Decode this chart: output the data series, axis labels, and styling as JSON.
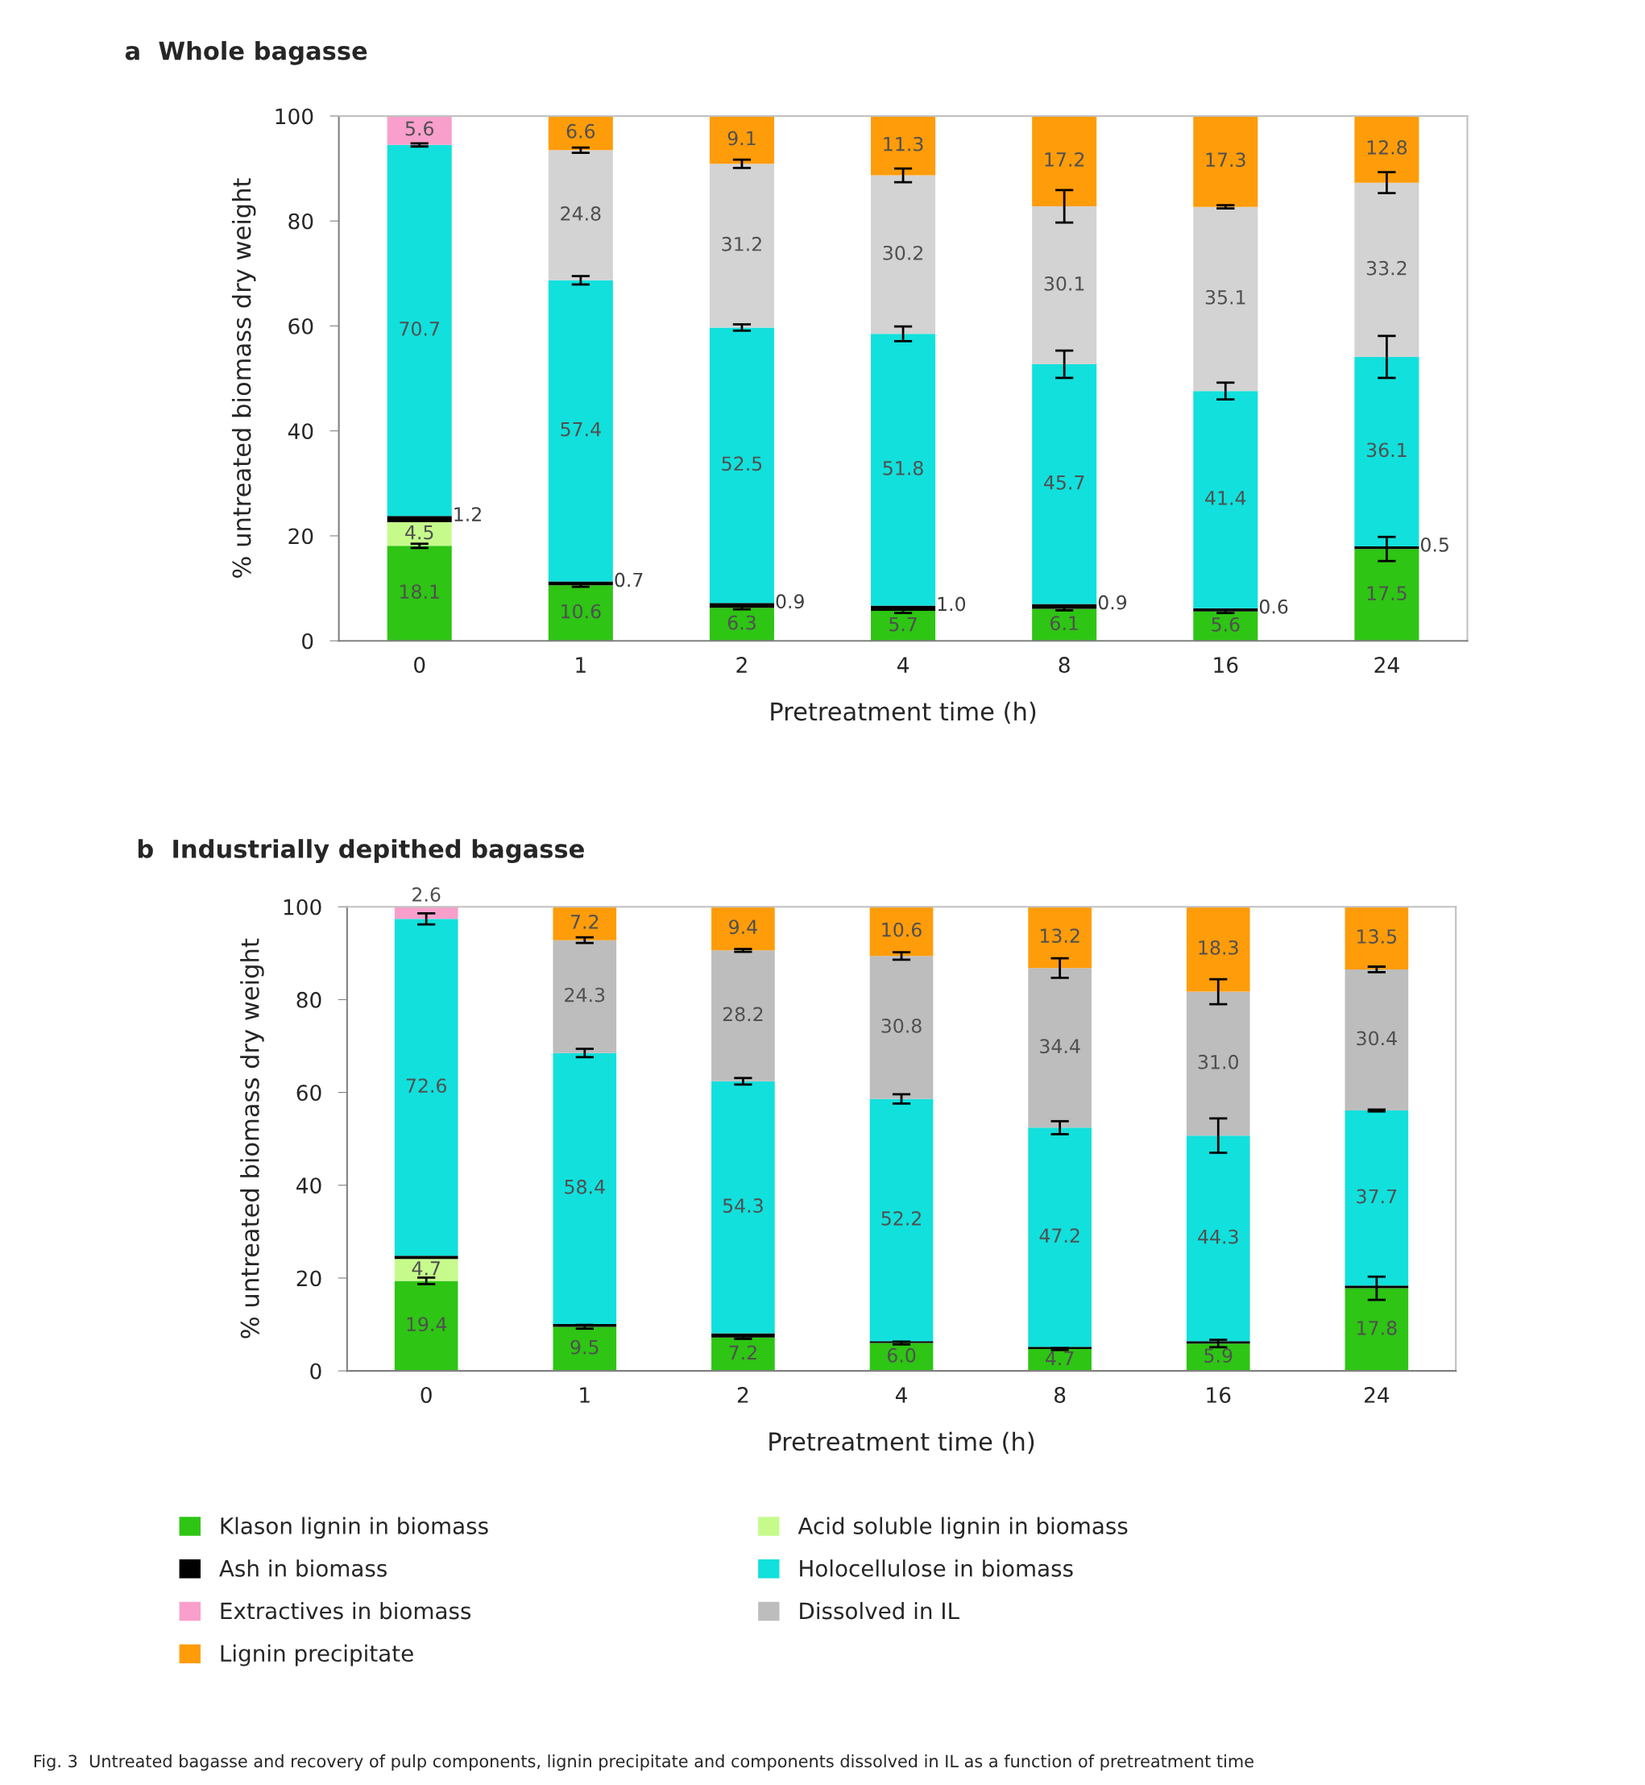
{
  "chart_data": [
    {
      "type": "bar",
      "stacked": true,
      "title": "a  Whole bagasse",
      "xlabel": "Pretreatment time (h)",
      "ylabel": "% untreated biomass dry weight",
      "categories": [
        "0",
        "1",
        "2",
        "4",
        "8",
        "16",
        "24"
      ],
      "ylim": [
        0,
        100
      ],
      "yticks": [
        0,
        20,
        40,
        60,
        80,
        100
      ],
      "grid": false,
      "series": [
        {
          "color": "#2ec514",
          "values": [
            18.1,
            10.6,
            6.3,
            5.7,
            6.1,
            5.6,
            17.5
          ],
          "errors": [
            0.4,
            0.3,
            0.3,
            0.4,
            0.3,
            0.3,
            2.3
          ],
          "value_labels": [
            "18.1",
            "10.6",
            "6.3",
            "5.7",
            "6.1",
            "5.6",
            "17.5"
          ]
        },
        {
          "color": "#c6fb8c",
          "values": [
            4.5,
            null,
            null,
            null,
            null,
            null,
            null
          ],
          "value_labels": [
            "4.5",
            null,
            null,
            null,
            null,
            null,
            null
          ]
        },
        {
          "color": "#000000",
          "values": [
            1.2,
            0.7,
            0.9,
            1.0,
            0.9,
            0.6,
            0.5
          ],
          "value_labels": [
            "1.2",
            "0.7",
            "0.9",
            "1.0",
            "0.9",
            "0.6",
            "0.5"
          ]
        },
        {
          "color": "#12e0dc",
          "values": [
            70.7,
            57.4,
            52.5,
            51.8,
            45.7,
            41.4,
            36.1
          ],
          "errors": [
            0.3,
            0.8,
            0.6,
            1.4,
            2.6,
            1.6,
            4.0
          ],
          "value_labels": [
            "70.7",
            "57.4",
            "52.5",
            "51.8",
            "45.7",
            "41.4",
            "36.1"
          ]
        },
        {
          "color": "#f99fcb",
          "values": [
            5.6,
            null,
            null,
            null,
            null,
            null,
            null
          ],
          "value_labels": [
            "5.6",
            null,
            null,
            null,
            null,
            null,
            null
          ]
        },
        {
          "color": "#d3d3d3",
          "values": [
            null,
            24.8,
            31.2,
            30.2,
            30.1,
            35.1,
            33.2
          ],
          "errors": [
            null,
            0.5,
            0.8,
            1.3,
            3.1,
            0.3,
            2.0
          ],
          "value_labels": [
            null,
            "24.8",
            "31.2",
            "30.2",
            "30.1",
            "35.1",
            "33.2"
          ]
        },
        {
          "color": "#ff9c0a",
          "values": [
            null,
            6.6,
            9.1,
            11.3,
            17.2,
            17.3,
            12.8
          ],
          "value_labels": [
            null,
            "6.6",
            "9.1",
            "11.3",
            "17.2",
            "17.3",
            "12.8"
          ]
        }
      ]
    },
    {
      "type": "bar",
      "stacked": true,
      "title": "b  Industrially depithed bagasse",
      "xlabel": "Pretreatment time (h)",
      "ylabel": "% untreated biomass dry weight",
      "categories": [
        "0",
        "1",
        "2",
        "4",
        "8",
        "16",
        "24"
      ],
      "ylim": [
        0,
        100
      ],
      "yticks": [
        0,
        20,
        40,
        60,
        80,
        100
      ],
      "grid": false,
      "legend": "bottom",
      "annotations": [
        "Fig. 3  Untreated bagasse and recovery of pulp components, lignin precipitate and components dissolved in IL as a function of pretreatment time"
      ],
      "series": [
        {
          "name": "Klason lignin in biomass",
          "color": "#2ec514",
          "values": [
            19.4,
            9.5,
            7.2,
            6.0,
            4.7,
            5.9,
            17.8
          ],
          "errors": [
            0.7,
            0.4,
            0.3,
            0.3,
            0.2,
            0.8,
            2.5
          ],
          "value_labels": [
            "19.4",
            "9.5",
            "7.2",
            "6.0",
            "4.7",
            "5.9",
            "17.8"
          ]
        },
        {
          "name": "Acid soluble lignin in biomass",
          "color": "#c6fb8c",
          "values": [
            4.7,
            null,
            null,
            null,
            null,
            null,
            null
          ],
          "value_labels": [
            "4.7",
            null,
            null,
            null,
            null,
            null,
            null
          ]
        },
        {
          "name": "Ash in biomass",
          "color": "#000000",
          "values": [
            0.7,
            0.6,
            0.9,
            0.4,
            0.5,
            0.5,
            0.6
          ]
        },
        {
          "name": "Holocellulose in biomass",
          "color": "#12e0dc",
          "values": [
            72.6,
            58.4,
            54.3,
            52.2,
            47.2,
            44.3,
            37.7
          ],
          "errors": [
            1.2,
            0.9,
            0.7,
            1.0,
            1.4,
            3.7,
            0.2
          ],
          "value_labels": [
            "72.6",
            "58.4",
            "54.3",
            "52.2",
            "47.2",
            "44.3",
            "37.7"
          ]
        },
        {
          "name": "Extractives in biomass",
          "color": "#f99fcb",
          "values": [
            2.6,
            null,
            null,
            null,
            null,
            null,
            null
          ],
          "value_labels": [
            "2.6",
            null,
            null,
            null,
            null,
            null,
            null
          ]
        },
        {
          "name": "Dissolved in IL",
          "color": "#bdbdbd",
          "values": [
            null,
            24.3,
            28.2,
            30.8,
            34.4,
            31.0,
            30.4
          ],
          "errors": [
            null,
            0.6,
            0.3,
            0.8,
            2.1,
            2.7,
            0.6
          ],
          "value_labels": [
            null,
            "24.3",
            "28.2",
            "30.8",
            "34.4",
            "31.0",
            "30.4"
          ]
        },
        {
          "name": "Lignin precipitate",
          "color": "#ff9c0a",
          "values": [
            null,
            7.2,
            9.4,
            10.6,
            13.2,
            18.3,
            13.5
          ],
          "value_labels": [
            null,
            "7.2",
            "9.4",
            "10.6",
            "13.2",
            "18.3",
            "13.5"
          ]
        }
      ]
    }
  ]
}
